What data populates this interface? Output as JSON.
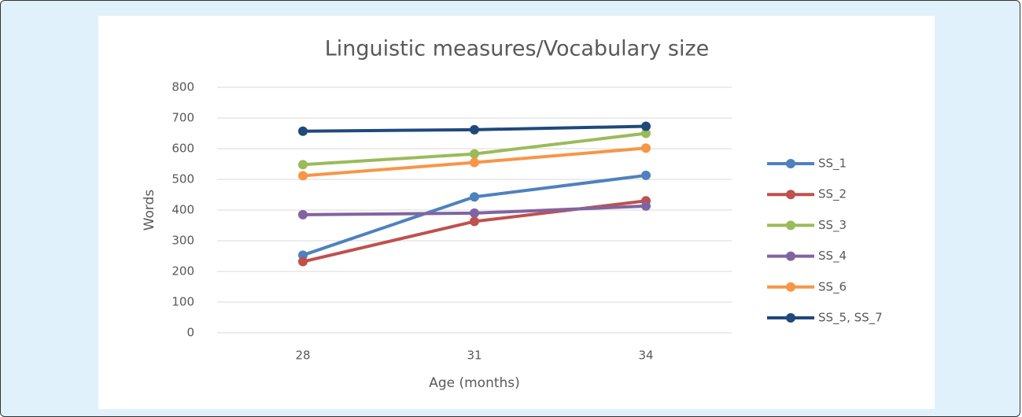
{
  "chart_data": {
    "type": "line",
    "title": "Linguistic measures/Vocabulary size",
    "x_label": "Age (months)",
    "y_label": "Words",
    "categories": [
      "28",
      "31",
      "34"
    ],
    "ylim": [
      0,
      800
    ],
    "yticks": [
      0,
      100,
      200,
      300,
      400,
      500,
      600,
      700,
      800
    ],
    "grid": true,
    "legend": "right",
    "series": [
      {
        "name": "SS_1",
        "color": "#4f81bd",
        "values": [
          253,
          443,
          513
        ]
      },
      {
        "name": "SS_2",
        "color": "#c0504d",
        "values": [
          232,
          363,
          430
        ]
      },
      {
        "name": "SS_3",
        "color": "#9bbb59",
        "values": [
          548,
          583,
          650
        ]
      },
      {
        "name": "SS_4",
        "color": "#8064a2",
        "values": [
          385,
          390,
          413
        ]
      },
      {
        "name": "SS_6",
        "color": "#f79646",
        "values": [
          512,
          555,
          602
        ]
      },
      {
        "name": "SS_5, SS_7",
        "color": "#1f497d",
        "values": [
          657,
          662,
          673
        ]
      }
    ]
  }
}
